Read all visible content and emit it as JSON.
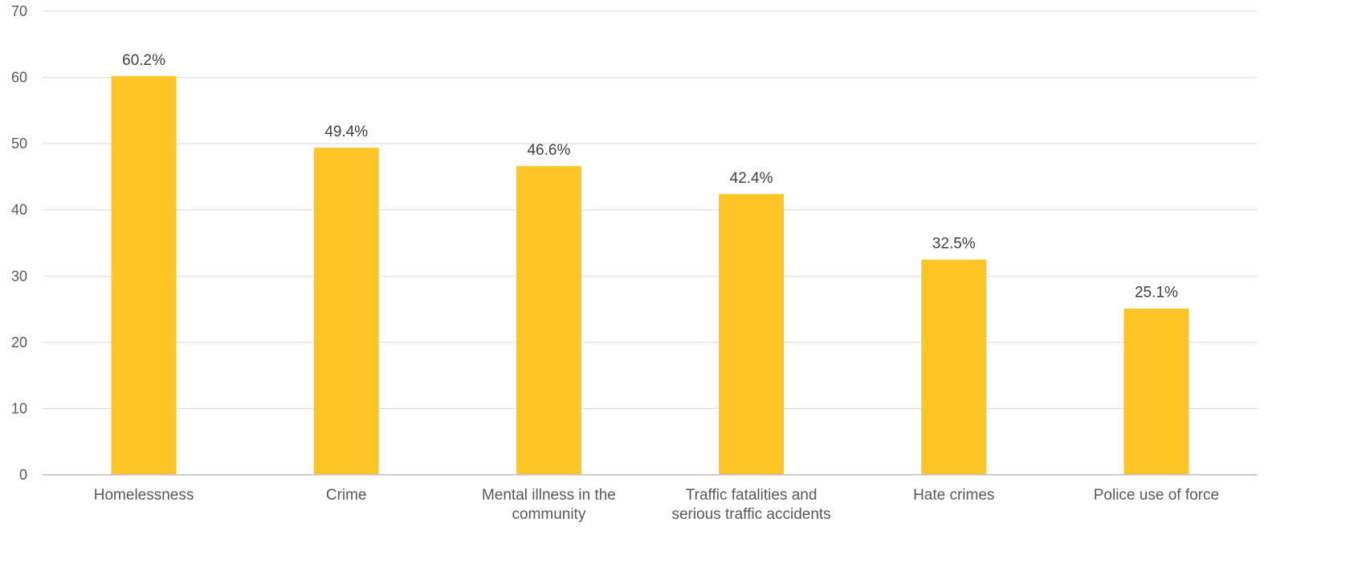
{
  "chart_data": {
    "type": "bar",
    "title": "",
    "xlabel": "",
    "ylabel": "",
    "categories": [
      [
        "Homelessness"
      ],
      [
        "Crime"
      ],
      [
        "Mental illness in the",
        "community"
      ],
      [
        "Traffic fatalities and",
        "serious traffic accidents"
      ],
      [
        "Hate crimes"
      ],
      [
        "Police use of force"
      ]
    ],
    "values": [
      60.2,
      49.4,
      46.6,
      42.4,
      32.5,
      25.1
    ],
    "data_labels": [
      "60.2%",
      "49.4%",
      "46.6%",
      "42.4%",
      "32.5%",
      "25.1%"
    ],
    "ylim": [
      0,
      70
    ],
    "yticks": [
      "0",
      "10",
      "20",
      "30",
      "40",
      "50",
      "60",
      "70"
    ],
    "grid": true,
    "legend": "none",
    "colors": {
      "bar": "#FFC425",
      "grid": "#D9D9D9",
      "axis": "#BFBFBF",
      "text": "#595959",
      "data_label": "#404040"
    }
  }
}
